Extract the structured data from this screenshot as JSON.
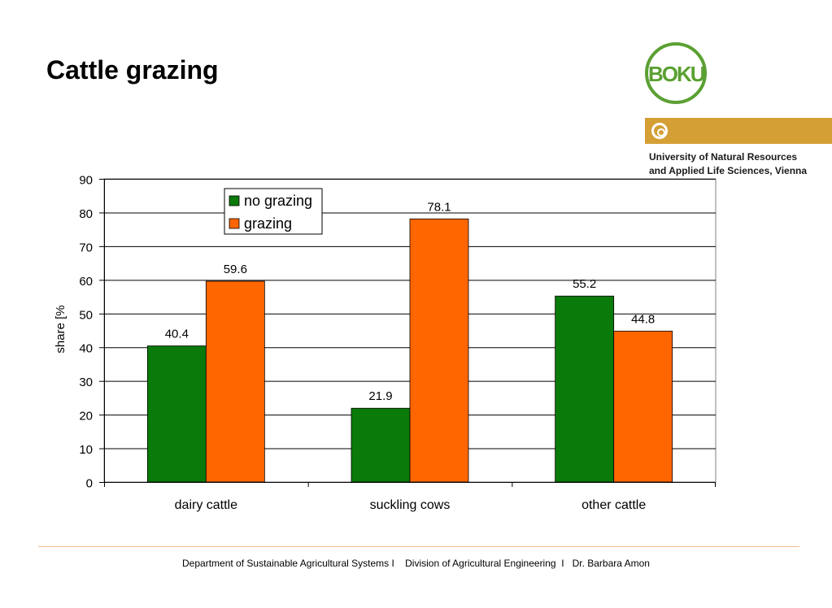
{
  "slide": {
    "title": "Cattle grazing",
    "logo_text": "BOKU",
    "university_line1": "University of Natural Resources",
    "university_line2": "and Applied Life Sciences, Vienna",
    "footer": "Department of Sustainable Agricultural Systems I    Division of Agricultural Engineering  I   Dr. Barbara Amon"
  },
  "colors": {
    "no_grazing": "#0a7a0a",
    "grazing": "#ff6600",
    "logo_green": "#5ba032",
    "logo_gold": "#d4a036"
  },
  "chart_data": {
    "type": "bar",
    "title": "",
    "xlabel": "",
    "ylabel": "share [%",
    "ylim": [
      0,
      90
    ],
    "yticks": [
      0,
      10,
      20,
      30,
      40,
      50,
      60,
      70,
      80,
      90
    ],
    "categories": [
      "dairy cattle",
      "suckling cows",
      "other cattle"
    ],
    "series": [
      {
        "name": "no grazing",
        "values": [
          40.4,
          21.9,
          55.2
        ],
        "color": "#0a7a0a"
      },
      {
        "name": "grazing",
        "values": [
          59.6,
          78.1,
          44.8
        ],
        "color": "#ff6600"
      }
    ],
    "data_labels": [
      [
        "40.4",
        "21.9",
        "55.2"
      ],
      [
        "59.6",
        "78.1",
        "44.8"
      ]
    ],
    "grid": true,
    "legend": "top-left"
  }
}
